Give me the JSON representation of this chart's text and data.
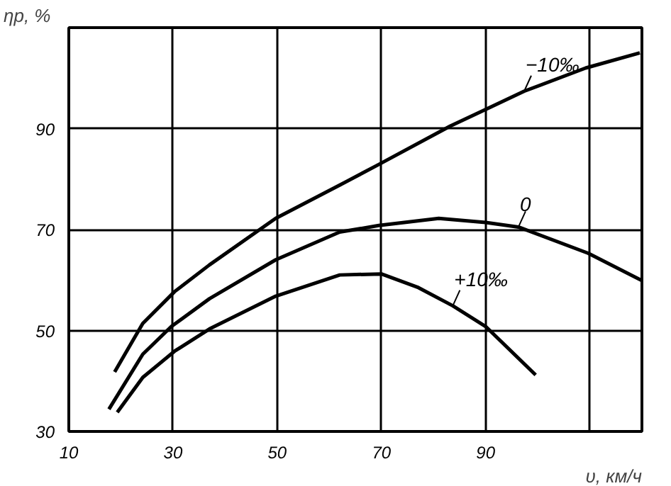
{
  "chart_data": {
    "type": "line",
    "xlabel": "υ, км/ч",
    "ylabel": "ηр, %",
    "xlim": [
      10,
      120
    ],
    "ylim": [
      30,
      110
    ],
    "xticks": [
      10,
      30,
      50,
      70,
      90,
      {
        "value": 110,
        "label": null
      }
    ],
    "yticks": [
      30,
      50,
      70,
      90,
      {
        "value": 110,
        "label": null
      }
    ],
    "grid": true,
    "legend": false,
    "marker": "none",
    "line_style": "solid",
    "series": [
      {
        "name": "−10‰",
        "color": "#000000",
        "x": [
          18.8,
          24.2,
          30.3,
          37,
          49.7,
          62,
          69.5,
          83.2,
          90,
          97.4,
          109.2,
          119.6
        ],
        "values": [
          41.8,
          51.4,
          57.7,
          63,
          72.2,
          78.8,
          82.9,
          90.5,
          93.8,
          97.4,
          102,
          105
        ]
      },
      {
        "name": "0",
        "color": "#000000",
        "x": [
          17.7,
          24.2,
          29.7,
          37,
          49.7,
          62,
          69.5,
          81,
          90,
          96.3,
          109.7,
          120
        ],
        "values": [
          34.4,
          45.3,
          50.8,
          56.3,
          64,
          69.5,
          70.8,
          72.2,
          71.4,
          70.5,
          65.3,
          59.9
        ]
      },
      {
        "name": "+10‰",
        "color": "#000000",
        "x": [
          19.3,
          24.2,
          30.3,
          37,
          49.7,
          62,
          70,
          77.1,
          83.7,
          90,
          99.6
        ],
        "values": [
          33.8,
          40.7,
          45.9,
          50.3,
          56.8,
          61,
          61.2,
          58.5,
          54.9,
          50.8,
          41.2
        ]
      }
    ]
  }
}
